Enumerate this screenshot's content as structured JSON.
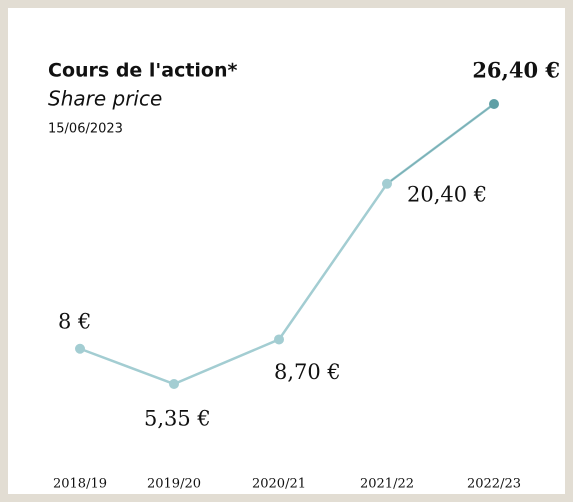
{
  "chart_data": {
    "type": "line",
    "title": "Cours de l'action*",
    "subtitle": "Share price",
    "date": "15/06/2023",
    "categories": [
      "2018/19",
      "2019/20",
      "2020/21",
      "2021/22",
      "2022/23"
    ],
    "values": [
      8,
      5.35,
      8.7,
      20.4,
      26.4
    ],
    "value_labels": [
      "8 €",
      "5,35 €",
      "8,70 €",
      "20,40 €",
      "26,40 €"
    ],
    "color": "#a3cdd2",
    "last_color": "#5f9fa5"
  }
}
